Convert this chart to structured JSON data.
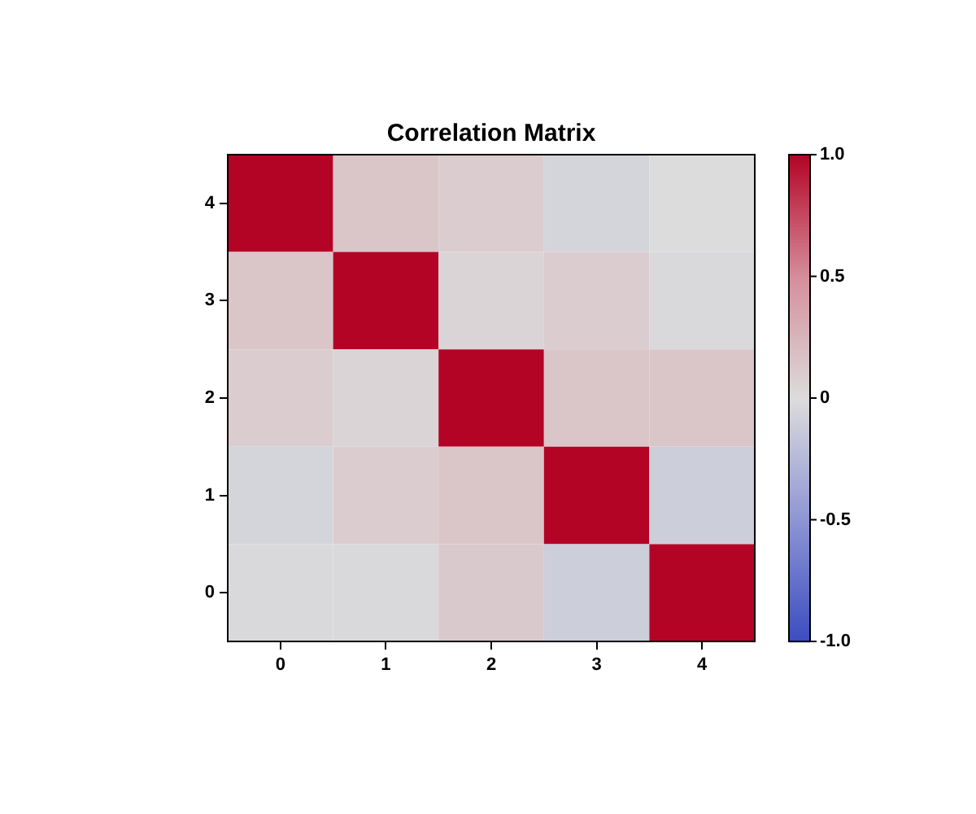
{
  "chart_data": {
    "type": "heatmap",
    "title": "Correlation Matrix",
    "categories": [
      "0",
      "1",
      "2",
      "3",
      "4"
    ],
    "y_categories": [
      "4",
      "3",
      "2",
      "1",
      "0"
    ],
    "cells": [
      [
        1,
        0.15,
        0.1,
        -0.05,
        0.0
      ],
      [
        0.15,
        1,
        0.05,
        0.1,
        -0.02
      ],
      [
        0.1,
        0.05,
        1,
        0.15,
        0.15
      ],
      [
        -0.05,
        0.1,
        0.15,
        1,
        -0.1
      ],
      [
        -0.02,
        -0.02,
        0.12,
        -0.1,
        1
      ]
    ],
    "clim": [
      -1,
      1
    ],
    "cticks": [
      {
        "value": -1,
        "label": "-1.0"
      },
      {
        "value": -0.5,
        "label": "-0.5"
      },
      0,
      0.5,
      {
        "value": 1,
        "label": "1.0"
      }
    ],
    "grid": false
  }
}
